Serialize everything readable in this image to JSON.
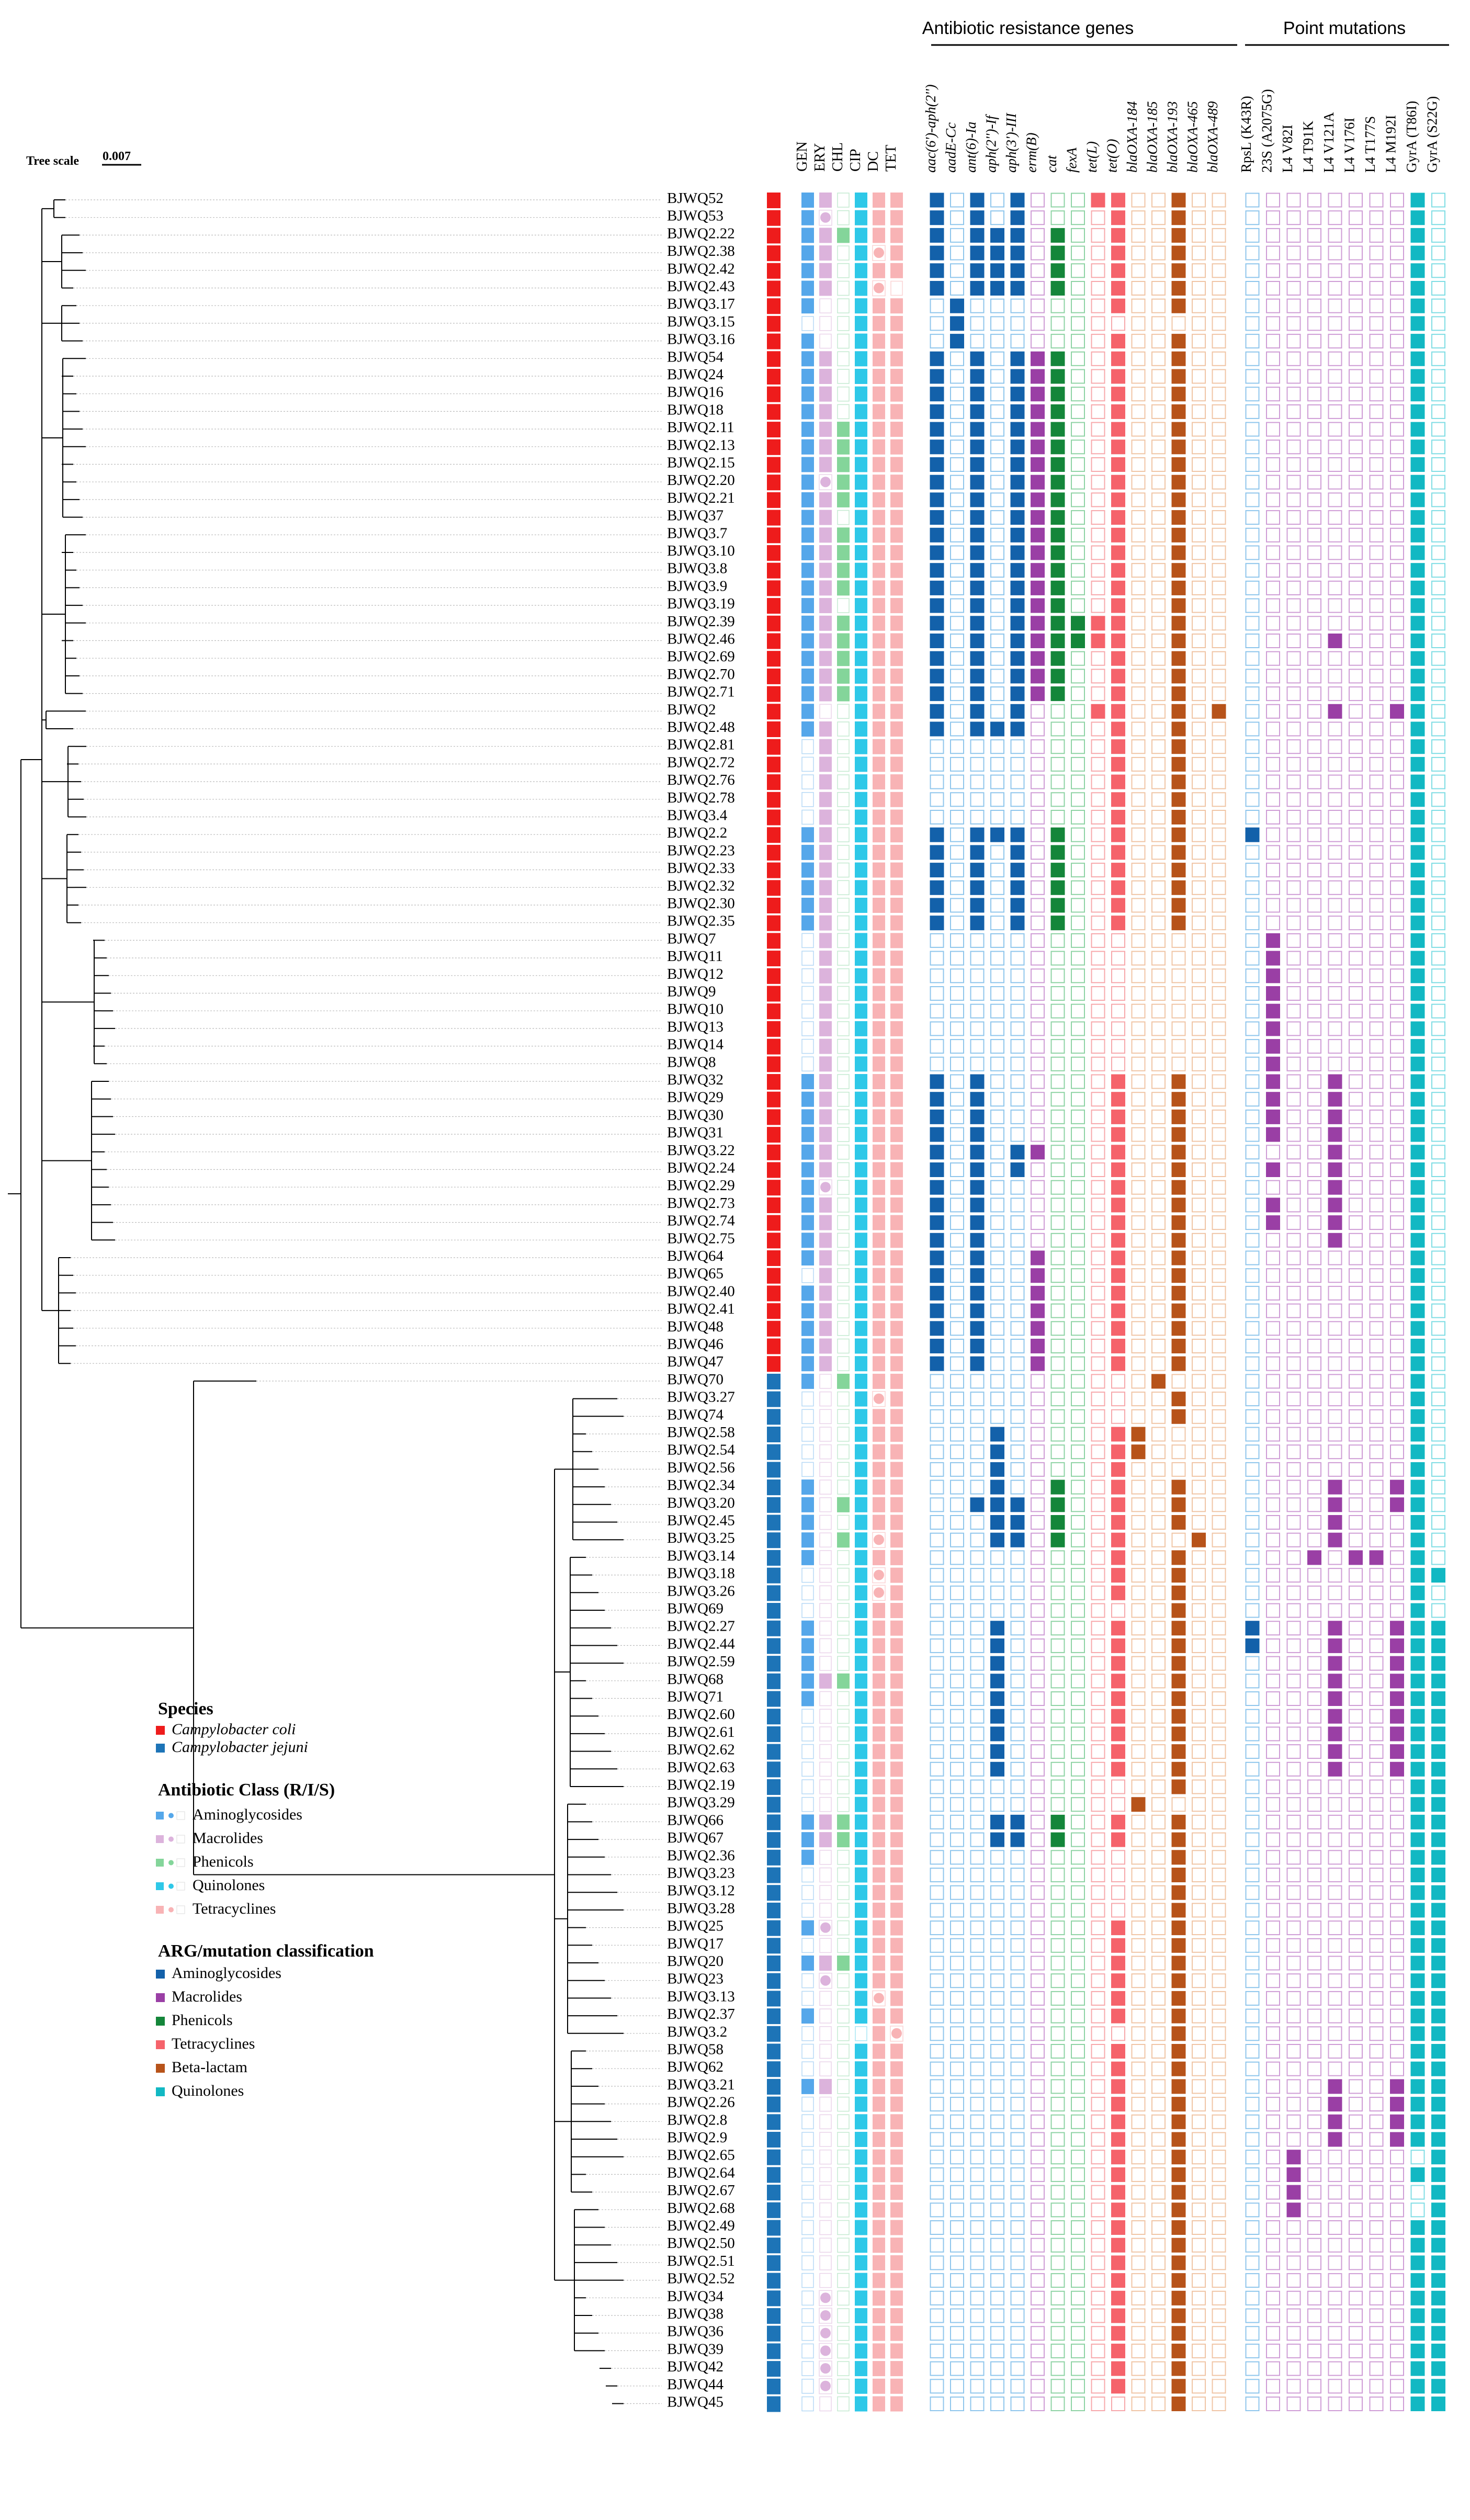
{
  "tree_scale": {
    "label": "Tree scale",
    "value": "0.007"
  },
  "sections": {
    "arg": "Antibiotic resistance genes",
    "point": "Point mutations"
  },
  "pheno_cols": [
    "GEN",
    "ERY",
    "CHL",
    "CIP",
    "DC",
    "TET"
  ],
  "arg_cols": [
    "aac(6')-aph(2'')",
    "aadE-Cc",
    "ant(6)-Ia",
    "aph(2'')-If",
    "aph(3')-III",
    "erm(B)",
    "cat",
    "fexA",
    "tet(L)",
    "tet(O)",
    "blaOXA-184",
    "blaOXA-185",
    "blaOXA-193",
    "blaOXA-465",
    "blaOXA-489"
  ],
  "mut_cols": [
    "RpsL (K43R)",
    "23S (A2075G)",
    "L4 V82I",
    "L4 T91K",
    "L4 V121A",
    "L4 V176I",
    "L4 T177S",
    "L4 M192I",
    "GyrA (T86I)",
    "GyrA (S22G)"
  ],
  "strains": [
    "BJWQ52",
    "BJWQ53",
    "BJWQ2.22",
    "BJWQ2.38",
    "BJWQ2.42",
    "BJWQ2.43",
    "BJWQ3.17",
    "BJWQ3.15",
    "BJWQ3.16",
    "BJWQ54",
    "BJWQ24",
    "BJWQ16",
    "BJWQ18",
    "BJWQ2.11",
    "BJWQ2.13",
    "BJWQ2.15",
    "BJWQ2.20",
    "BJWQ2.21",
    "BJWQ37",
    "BJWQ3.7",
    "BJWQ3.10",
    "BJWQ3.8",
    "BJWQ3.9",
    "BJWQ3.19",
    "BJWQ2.39",
    "BJWQ2.46",
    "BJWQ2.69",
    "BJWQ2.70",
    "BJWQ2.71",
    "BJWQ2",
    "BJWQ2.48",
    "BJWQ2.81",
    "BJWQ2.72",
    "BJWQ2.76",
    "BJWQ2.78",
    "BJWQ3.4",
    "BJWQ2.2",
    "BJWQ2.23",
    "BJWQ2.33",
    "BJWQ2.32",
    "BJWQ2.30",
    "BJWQ2.35",
    "BJWQ7",
    "BJWQ11",
    "BJWQ12",
    "BJWQ9",
    "BJWQ10",
    "BJWQ13",
    "BJWQ14",
    "BJWQ8",
    "BJWQ32",
    "BJWQ29",
    "BJWQ30",
    "BJWQ31",
    "BJWQ3.22",
    "BJWQ2.24",
    "BJWQ2.29",
    "BJWQ2.73",
    "BJWQ2.74",
    "BJWQ2.75",
    "BJWQ64",
    "BJWQ65",
    "BJWQ2.40",
    "BJWQ2.41",
    "BJWQ48",
    "BJWQ46",
    "BJWQ47",
    "BJWQ70",
    "BJWQ3.27",
    "BJWQ74",
    "BJWQ2.58",
    "BJWQ2.54",
    "BJWQ2.56",
    "BJWQ2.34",
    "BJWQ3.20",
    "BJWQ2.45",
    "BJWQ3.25",
    "BJWQ3.14",
    "BJWQ3.18",
    "BJWQ3.26",
    "BJWQ69",
    "BJWQ2.27",
    "BJWQ2.44",
    "BJWQ2.59",
    "BJWQ68",
    "BJWQ71",
    "BJWQ2.60",
    "BJWQ2.61",
    "BJWQ2.62",
    "BJWQ2.63",
    "BJWQ2.19",
    "BJWQ3.29",
    "BJWQ66",
    "BJWQ67",
    "BJWQ2.36",
    "BJWQ3.23",
    "BJWQ3.12",
    "BJWQ3.28",
    "BJWQ25",
    "BJWQ17",
    "BJWQ20",
    "BJWQ23",
    "BJWQ3.13",
    "BJWQ2.37",
    "BJWQ3.2",
    "BJWQ58",
    "BJWQ62",
    "BJWQ3.21",
    "BJWQ2.26",
    "BJWQ2.8",
    "BJWQ2.9",
    "BJWQ2.65",
    "BJWQ2.64",
    "BJWQ2.67",
    "BJWQ2.68",
    "BJWQ2.49",
    "BJWQ2.50",
    "BJWQ2.51",
    "BJWQ2.52",
    "BJWQ34",
    "BJWQ38",
    "BJWQ36",
    "BJWQ39",
    "BJWQ42",
    "BJWQ44",
    "BJWQ45"
  ],
  "species_split": 67,
  "legend": {
    "species_title": "Species",
    "species": [
      {
        "label": "Campylobacter coli",
        "color": "#ee1c1c"
      },
      {
        "label": "Campylobacter jejuni",
        "color": "#1d74b7"
      }
    ],
    "class_title": "Antibiotic Class (R/I/S)",
    "classes": [
      {
        "label": "Aminoglycosides",
        "color": "#55a7ea"
      },
      {
        "label": "Macrolides",
        "color": "#dcb3dc"
      },
      {
        "label": "Phenicols",
        "color": "#84d59a"
      },
      {
        "label": "Quinolones",
        "color": "#2ec8e8"
      },
      {
        "label": "Tetracyclines",
        "color": "#f8b3b5"
      }
    ],
    "arg_title": "ARG/mutation classification",
    "arg_classes": [
      {
        "label": "Aminoglycosides",
        "color": "#1361aa"
      },
      {
        "label": "Macrolides",
        "color": "#9a3fa5"
      },
      {
        "label": "Phenicols",
        "color": "#14863a"
      },
      {
        "label": "Tetracyclines",
        "color": "#f5636b"
      },
      {
        "label": "Beta-lactam",
        "color": "#b7531a"
      },
      {
        "label": "Quinolones",
        "color": "#12b8c3"
      }
    ]
  },
  "colors": {
    "coli": "#ee1c1c",
    "jejuni": "#1d74b7",
    "pheno": [
      "#55a7ea",
      "#dcb3dc",
      "#84d59a",
      "#2ec8e8",
      "#f8b3b5",
      "#f8b3b5"
    ],
    "pheno_empty_border": [
      "#b6d9f5",
      "#ead4ea",
      "#c4ead0",
      "#a7e6f4",
      "#fbd3d4",
      "#fbd3d4"
    ],
    "arg": [
      "#1361aa",
      "#1361aa",
      "#1361aa",
      "#1361aa",
      "#1361aa",
      "#9a3fa5",
      "#14863a",
      "#14863a",
      "#f5636b",
      "#f5636b",
      "#b7531a",
      "#b7531a",
      "#b7531a",
      "#b7531a",
      "#b7531a"
    ],
    "arg_border": [
      "#8fc6ec",
      "#8fc6ec",
      "#8fc6ec",
      "#8fc6ec",
      "#8fc6ec",
      "#cf9dd6",
      "#8ed3a4",
      "#8ed3a4",
      "#f7a8ab",
      "#f7a8ab",
      "#f0c5a5",
      "#f0c5a5",
      "#f0c5a5",
      "#f0c5a5",
      "#f0c5a5"
    ],
    "mut": [
      "#1361aa",
      "#9a3fa5",
      "#9a3fa5",
      "#9a3fa5",
      "#9a3fa5",
      "#9a3fa5",
      "#9a3fa5",
      "#9a3fa5",
      "#12b8c3",
      "#12b8c3"
    ],
    "mut_border": [
      "#8fc6ec",
      "#cf9dd6",
      "#cf9dd6",
      "#cf9dd6",
      "#cf9dd6",
      "#cf9dd6",
      "#cf9dd6",
      "#cf9dd6",
      "#7fdde4",
      "#7fdde4"
    ]
  },
  "pheno": [
    "RR.RRR",
    "RI.RRR",
    "RRRRRR",
    "RR.RIR",
    "RR.RRR",
    "RR.RI.",
    "R..RRR",
    "...RRR",
    "R..RRR",
    "RR.RRR",
    "RR.RRR",
    "RR.RRR",
    "RR.RRR",
    "RRRRRR",
    "RRRRRR",
    "RRRRRR",
    "RIRRRR",
    "RRRRRR",
    "RR.RRR",
    "RRRRRR",
    "RRRRRR",
    "RRRRRR",
    "RRRRRR",
    "RR.RRR",
    "RRRRRR",
    "RRRRRR",
    "RRRRRR",
    "RRRRRR",
    "RRRRRR",
    "R..RRR",
    "RR.RRR",
    ".R.RRR",
    ".R.RRR",
    ".R.RRR",
    ".R.RRR",
    ".R.RRR",
    "RR.RRR",
    "RR.RRR",
    "RR.RRR",
    "RR.RRR",
    "RR.RRR",
    "RR.RRR",
    ".R.RRR",
    ".R.RRR",
    ".R.RRR",
    ".R.RRR",
    ".R.RRR",
    ".R.RRR",
    ".R.RRR",
    ".R.RRR",
    "RR.RRR",
    "RR.RRR",
    "RR.RRR",
    "RR.RRR",
    "RR.RRR",
    "RR.RRR",
    "RI.RRR",
    "RR.RRR",
    "RR.RRR",
    "RR.RRR",
    "RR.RRR",
    ".R.RRR",
    "RR.RRR",
    "RR.RRR",
    "RR.RRR",
    "RR.RRR",
    "RR.RRR",
    "R.RRRR",
    "...RIR",
    "...RRR",
    "...RRR",
    "...RRR",
    "...RRR",
    "R..RRR",
    "R.RRRR",
    "R..RRR",
    "R.RRIR",
    "R..RRR",
    "...RIR",
    "...RIR",
    "...RRR",
    "R..RRR",
    "R..RRR",
    "R..RRR",
    "RRRRRR",
    "R..RRR",
    "...RRR",
    "...RRR",
    "...RRR",
    "...RRR",
    "...RRR",
    "...RRR",
    "RRRRRR",
    "RRRRRR",
    "R..RRR",
    "...RRR",
    "...RRR",
    "...RRR",
    "RI.RRR",
    "...RRR",
    "RRRRRR",
    ".I.RRR",
    "...RIR",
    "R..RRR",
    "....RI",
    "...RRR",
    "...RRR",
    "RR.RRR",
    "...RRR",
    "...RRR",
    "...RRR",
    "...RRR",
    "...RRR",
    "...RRR",
    "...RRR",
    "...RRR",
    "...RRR",
    "...RRR",
    "...RRR",
    ".I.RRR",
    ".I.RRR",
    ".I.RRR",
    ".I.RRR",
    ".I.RRR",
    ".I.RRR",
    "...RRR"
  ],
  "arg": [
    "X.X.X...XX..X..",
    "X.X.X....X..X..",
    "X.XXX.X..X..X..",
    "X.XXX.X..X..X..",
    "X.XXX.X..X..X..",
    "X.XXX.X..X..X..",
    ".X.......X..X..",
    ".X.............",
    ".X.......X..X..",
    "X.X.XXX..X..X..",
    "X.X.XXX..X..X..",
    "X.X.XXX..X..X..",
    "X.X.XXX..X..X..",
    "X.X.XXX..X..X..",
    "X.X.XXX..X..X..",
    "X.X.XXX..X..X..",
    "X.X.XXX..X..X..",
    "X.X.XXX..X..X..",
    "X.X.XXX..X..X..",
    "X.X.XXX..X..X..",
    "X.X.XXX..X..X..",
    "X.X.XXX..X..X..",
    "X.X.XXX..X..X..",
    "X.X.XXX..X..X..",
    "X.X.XXXXXX..X..",
    "X.X.XXXXXX..X..",
    "X.X.XXX..X..X..",
    "X.X.XXX..X..X..",
    "X.X.XXX..X..X..",
    "X.X.X...XX..X.X",
    "X.XXX....X..X..",
    ".........X..X..",
    ".........X..X..",
    ".........X..X..",
    ".........X..X..",
    ".........X..X..",
    "X.XXX.X..X..X..",
    "X.X.X.X..X..X..",
    "X.X.X.X..X..X..",
    "X.X.X.X..X..X..",
    "X.X.X.X..X..X..",
    "X.X.X.X..X..X..",
    "...............",
    "...............",
    "...............",
    "...............",
    "...............",
    "...............",
    "...............",
    "...............",
    "X.X......X..X..",
    "X.X......X..X..",
    "X.X......X..X..",
    "X.X......X..X..",
    "X.X.XX...X..X..",
    "X.X.X....X..X..",
    "X.X......X..X..",
    "X.X......X..X..",
    "X.X......X..X..",
    "X.X......X..X..",
    "X.X..X...X..X..",
    "X.X..X...X..X..",
    "X.X..X...X..X..",
    "X.X..X...X..X..",
    "X.X..X...X..X..",
    "X.X..X...X..X..",
    "X.X..X...X..X..",
    "...........X...",
    "............X..",
    "............X..",
    "...X.....XX....",
    "...X.....XX....",
    "...X.....X.....",
    "...X..X..X..X..",
    "..XXX.X..X..X..",
    "...XX.X..X..X..",
    "...XX.X..X...X.",
    ".........X..X..",
    ".........X..X..",
    ".........X..X..",
    "............X..",
    "...X.....X..X..",
    "...X.....X..X..",
    "...X.....X..X..",
    "...X.....X..X..",
    "...X.....X..X..",
    "...X.....X..X..",
    "...X.....X..X..",
    "...X.....X..X..",
    "...X.....X..X..",
    "............X..",
    "..........X....",
    "...XX.X..X..X..",
    "...XX.X..X..X..",
    "............X..",
    "............X..",
    "............X..",
    "............X..",
    ".........X..X..",
    ".........X..X..",
    ".........X..X..",
    ".........X..X..",
    ".........X..X..",
    ".........X..X..",
    "............X..",
    ".........X..X..",
    ".........X..X..",
    ".........X..X..",
    ".........X..X..",
    ".........X..X..",
    ".........X..X..",
    ".........X..X..",
    ".........X..X..",
    ".........X..X..",
    ".........X..X..",
    ".........X..X..",
    ".........X..X..",
    ".........X..X..",
    ".........X..X..",
    ".........X..X..",
    ".........X..X..",
    ".........X..X..",
    ".........X..X..",
    ".........X..X..",
    ".........X..X..",
    "............X.."
  ],
  "mut": [
    "........X.",
    "........X.",
    "........X.",
    "........X.",
    "........X.",
    "........X.",
    "........X.",
    "........X.",
    "........X.",
    "........X.",
    "........X.",
    "........X.",
    "........X.",
    "........X.",
    "........X.",
    "........X.",
    "........X.",
    "........X.",
    "........X.",
    "........X.",
    "........X.",
    "........X.",
    "........X.",
    "........X.",
    "........X.",
    "....X...X.",
    "........X.",
    "........X.",
    "........X.",
    "....X..XX.",
    "........X.",
    "........X.",
    "........X.",
    "........X.",
    "........X.",
    "........X.",
    "X.......X.",
    "........X.",
    "........X.",
    "........X.",
    "........X.",
    "........X.",
    ".X......X.",
    ".X......X.",
    ".X......X.",
    ".X......X.",
    ".X......X.",
    ".X......X.",
    ".X......X.",
    ".X......X.",
    ".X..X...X.",
    ".X..X...X.",
    ".X..X...X.",
    ".X..X...X.",
    "....X...X.",
    ".X..X...X.",
    "....X...X.",
    ".X..X...X.",
    ".X..X...X.",
    "....X...X.",
    "........X.",
    "........X.",
    "........X.",
    "........X.",
    "........X.",
    "........X.",
    "........X.",
    "........X.",
    "........X.",
    "........X.",
    "........X.",
    "........X.",
    "........X.",
    "....X..XX.",
    "....X..XX.",
    "....X...X.",
    "....X...X.",
    "...X.XX.X.",
    "........XX",
    "........X.",
    "........X.",
    "X...X..XXX",
    "X...X..XXX",
    "....X..XXX",
    "....X..XXX",
    "....X..XXX",
    "....X..XXX",
    "....X..XXX",
    "....X..XXX",
    "....X..XXX",
    "........XX",
    "........XX",
    "........XX",
    "........XX",
    "........XX",
    "........XX",
    "........XX",
    "........XX",
    "........XX",
    "........XX",
    "........XX",
    "........XX",
    "........XX",
    "........XX",
    "........XX",
    "........XX",
    "........XX",
    "....X..XXX",
    "....X..XXX",
    "....X..XXX",
    "....X..XXX",
    "..X......X",
    "..X.....XX",
    "..X......X",
    "..X......X",
    "........XX",
    "........XX",
    "........XX",
    "........XX",
    "........XX",
    "........XX",
    "........XX",
    "........XX",
    "........XX",
    "........XX",
    "........XX"
  ]
}
